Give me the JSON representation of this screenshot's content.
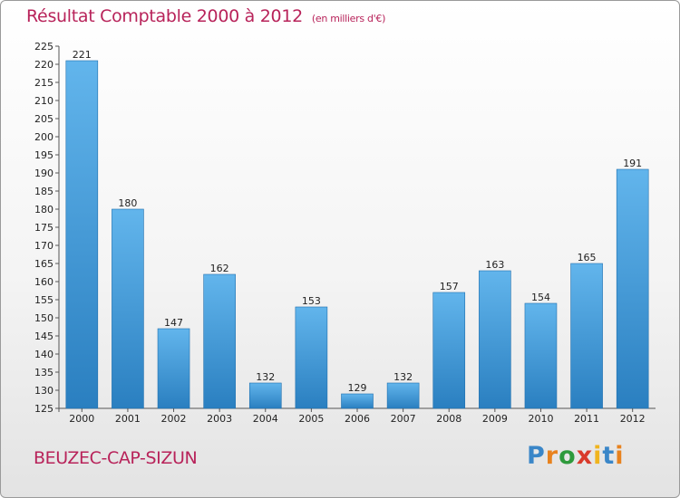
{
  "header": {
    "title": "Résultat Comptable 2000 à 2012",
    "subtitle": "(en milliers d'€)"
  },
  "footer": {
    "commune": "BEUZEC-CAP-SIZUN",
    "logo_letters": [
      "P",
      "r",
      "o",
      "x",
      "i",
      "t",
      "i"
    ],
    "logo_colors": [
      "#3a86c8",
      "#e8821e",
      "#2e9a3c",
      "#d93a2b",
      "#f0b41e",
      "#3a86c8",
      "#e8821e"
    ]
  },
  "colors": {
    "accent": "#b8235a",
    "bar_top": "#62b5ec",
    "bar_bottom": "#2a7fc0"
  },
  "chart_data": {
    "type": "bar",
    "title": "Résultat Comptable 2000 à 2012",
    "subtitle": "(en milliers d'€)",
    "xlabel": "",
    "ylabel": "",
    "categories": [
      "2000",
      "2001",
      "2002",
      "2003",
      "2004",
      "2005",
      "2006",
      "2007",
      "2008",
      "2009",
      "2010",
      "2011",
      "2012"
    ],
    "values": [
      221,
      180,
      147,
      162,
      132,
      153,
      129,
      132,
      157,
      163,
      154,
      165,
      191
    ],
    "ylim": [
      125,
      225
    ],
    "ytick_step": 5,
    "grid": false,
    "legend": "none"
  }
}
